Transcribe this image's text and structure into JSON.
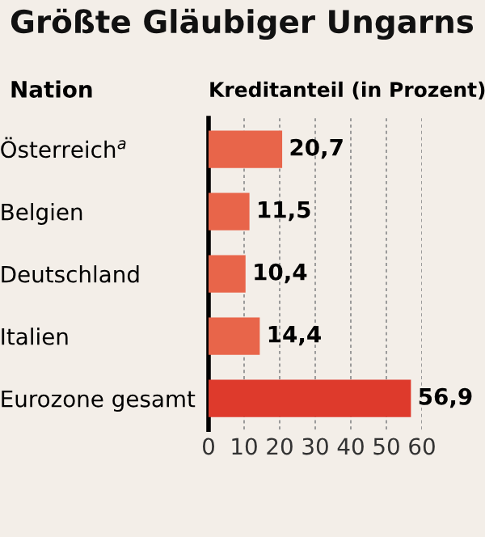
{
  "chart_data": {
    "type": "bar",
    "orientation": "horizontal",
    "title": "Größte Gläubiger Ungarns",
    "ylabel": "Nation",
    "xlabel": "Kreditanteil (in Prozent)",
    "categories": [
      "Österreich$^{a}$",
      "Belgien",
      "Deutschland",
      "Italien",
      "Eurozone gesamt"
    ],
    "values": [
      20.7,
      11.5,
      10.4,
      14.4,
      56.9
    ],
    "colors": [
      "#e8654a",
      "#e8654a",
      "#e8654a",
      "#e8654a",
      "#de3a2c"
    ],
    "value_labels": [
      "20,7",
      "11,5",
      "10,4",
      "14,4",
      "56,9"
    ],
    "xlim": [
      0,
      60
    ],
    "xticks": [
      0,
      10,
      20,
      30,
      40,
      50,
      60
    ],
    "grid": "x"
  }
}
